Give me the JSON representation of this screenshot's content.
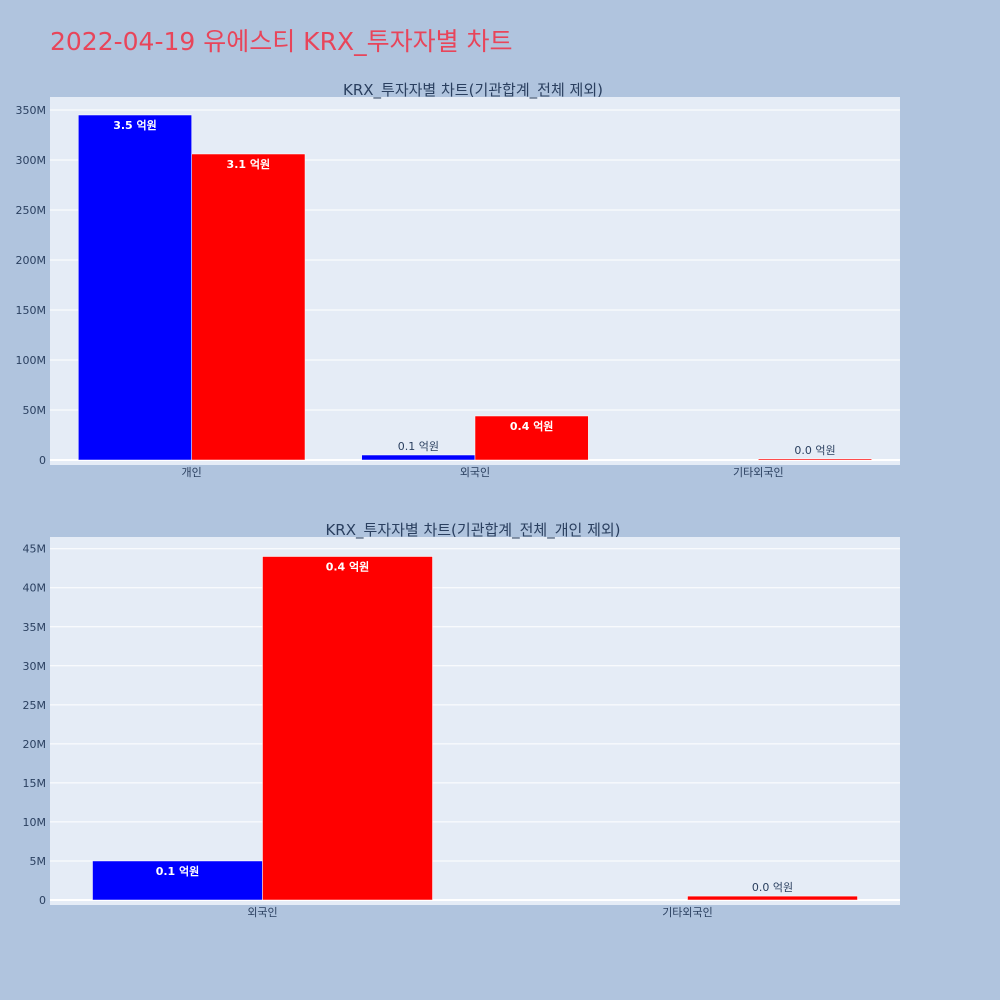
{
  "page": {
    "title": "2022-04-19 유에스티 KRX_투자자별 차트"
  },
  "chart_data": [
    {
      "type": "bar",
      "title": "KRX_투자자별 차트(기관합계_전체 제외)",
      "categories": [
        "개인",
        "외국인",
        "기타외국인"
      ],
      "series": [
        {
          "color": "#0000ff",
          "values": [
            345000000,
            5000000,
            0
          ],
          "labels": [
            "3.5 억원",
            "0.1 억원",
            ""
          ]
        },
        {
          "color": "#ff0000",
          "values": [
            306000000,
            44000000,
            500000
          ],
          "labels": [
            "3.1 억원",
            "0.4 억원",
            "0.0 억원"
          ]
        }
      ],
      "ylim": [
        0,
        363000000
      ],
      "yticks": [
        0,
        50000000,
        100000000,
        150000000,
        200000000,
        250000000,
        300000000,
        350000000
      ],
      "ytick_labels": [
        "0",
        "50M",
        "100M",
        "150M",
        "200M",
        "250M",
        "300M",
        "350M"
      ],
      "grid": true
    },
    {
      "type": "bar",
      "title": "KRX_투자자별 차트(기관합계_전체_개인 제외)",
      "categories": [
        "외국인",
        "기타외국인"
      ],
      "series": [
        {
          "color": "#0000ff",
          "values": [
            5000000,
            0
          ],
          "labels": [
            "0.1 억원",
            ""
          ]
        },
        {
          "color": "#ff0000",
          "values": [
            44000000,
            500000
          ],
          "labels": [
            "0.4 억원",
            "0.0 억원"
          ]
        }
      ],
      "ylim": [
        0,
        46500000
      ],
      "yticks": [
        0,
        5000000,
        10000000,
        15000000,
        20000000,
        25000000,
        30000000,
        35000000,
        40000000,
        45000000
      ],
      "ytick_labels": [
        "0",
        "5M",
        "10M",
        "15M",
        "20M",
        "25M",
        "30M",
        "35M",
        "40M",
        "45M"
      ],
      "grid": true
    }
  ]
}
